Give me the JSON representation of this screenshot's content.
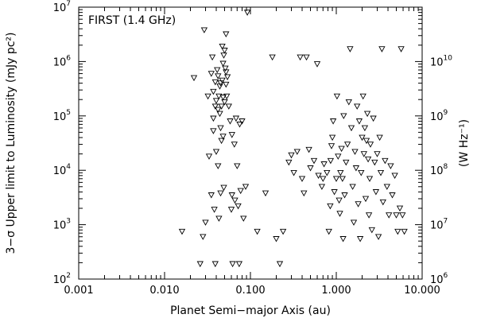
{
  "chart_data": {
    "type": "scatter",
    "annotation": "FIRST (1.4 GHz)",
    "xlabel": "Planet Semi−major Axis (au)",
    "ylabel": "3−σ Upper limit to Luminosity (mJy pc²)",
    "ylabel_right": "(W Hz⁻¹)",
    "xscale": "log",
    "yscale": "log",
    "xlim": [
      0.001,
      10
    ],
    "ylim": [
      100,
      10000000
    ],
    "ylim_right": [
      1000000,
      100000000000
    ],
    "grid": false,
    "legend": "none",
    "marker": "open-down-triangle",
    "x_ticks": [
      {
        "value": 0.001,
        "label": "0.001"
      },
      {
        "value": 0.01,
        "label": "0.010"
      },
      {
        "value": 0.1,
        "label": "0.100"
      },
      {
        "value": 1,
        "label": "1.000"
      },
      {
        "value": 10,
        "label": "10.000"
      }
    ],
    "y_ticks": [
      {
        "value": 100,
        "base": "10",
        "exp": "2"
      },
      {
        "value": 1000,
        "base": "10",
        "exp": "3"
      },
      {
        "value": 10000,
        "base": "10",
        "exp": "4"
      },
      {
        "value": 100000,
        "base": "10",
        "exp": "5"
      },
      {
        "value": 1000000,
        "base": "10",
        "exp": "6"
      },
      {
        "value": 10000000,
        "base": "10",
        "exp": "7"
      }
    ],
    "y_ticks_right": [
      {
        "value": 1000000,
        "base": "10",
        "exp": "6"
      },
      {
        "value": 10000000,
        "base": "10",
        "exp": "7"
      },
      {
        "value": 100000000,
        "base": "10",
        "exp": "8"
      },
      {
        "value": 1000000000,
        "base": "10",
        "exp": "9"
      },
      {
        "value": 10000000000,
        "base": "10",
        "exp": "10"
      }
    ],
    "series": [
      {
        "points": [
          [
            0.016,
            750
          ],
          [
            0.022,
            500000
          ],
          [
            0.026,
            190
          ],
          [
            0.028,
            600
          ],
          [
            0.029,
            3800000
          ],
          [
            0.03,
            1100
          ],
          [
            0.032,
            230000
          ],
          [
            0.033,
            18000
          ],
          [
            0.035,
            3500
          ],
          [
            0.035,
            600000
          ],
          [
            0.036,
            1200000
          ],
          [
            0.037,
            280000
          ],
          [
            0.037,
            90000
          ],
          [
            0.037,
            53000
          ],
          [
            0.038,
            1900
          ],
          [
            0.039,
            190
          ],
          [
            0.039,
            150000
          ],
          [
            0.039,
            420000
          ],
          [
            0.04,
            22000
          ],
          [
            0.04,
            190000
          ],
          [
            0.041,
            700000
          ],
          [
            0.042,
            540000
          ],
          [
            0.042,
            130000
          ],
          [
            0.042,
            12000
          ],
          [
            0.043,
            1300
          ],
          [
            0.043,
            230000
          ],
          [
            0.044,
            110000
          ],
          [
            0.044,
            350000
          ],
          [
            0.045,
            3800
          ],
          [
            0.045,
            60000
          ],
          [
            0.045,
            400000
          ],
          [
            0.046,
            150000
          ],
          [
            0.046,
            35000
          ],
          [
            0.047,
            450000
          ],
          [
            0.047,
            1900000
          ],
          [
            0.048,
            920000
          ],
          [
            0.048,
            220000
          ],
          [
            0.048,
            42000
          ],
          [
            0.049,
            4800
          ],
          [
            0.049,
            1300000
          ],
          [
            0.05,
            180000
          ],
          [
            0.05,
            1600000
          ],
          [
            0.051,
            750000
          ],
          [
            0.052,
            640000
          ],
          [
            0.052,
            380000
          ],
          [
            0.052,
            3200000
          ],
          [
            0.053,
            230000
          ],
          [
            0.054,
            520000
          ],
          [
            0.056,
            150000
          ],
          [
            0.058,
            80000
          ],
          [
            0.06,
            1900
          ],
          [
            0.061,
            3500
          ],
          [
            0.061,
            45000
          ],
          [
            0.062,
            190
          ],
          [
            0.065,
            30000
          ],
          [
            0.066,
            2800
          ],
          [
            0.068,
            90000
          ],
          [
            0.07,
            12000
          ],
          [
            0.072,
            2200
          ],
          [
            0.074,
            190
          ],
          [
            0.075,
            70000
          ],
          [
            0.077,
            4200
          ],
          [
            0.08,
            80000
          ],
          [
            0.083,
            1300
          ],
          [
            0.088,
            5000
          ],
          [
            0.092,
            8000000
          ],
          [
            0.12,
            750
          ],
          [
            0.15,
            3800
          ],
          [
            0.18,
            1200000
          ],
          [
            0.2,
            550
          ],
          [
            0.22,
            190
          ],
          [
            0.24,
            750
          ],
          [
            0.28,
            14000
          ],
          [
            0.3,
            19000
          ],
          [
            0.32,
            9000
          ],
          [
            0.35,
            22000
          ],
          [
            0.38,
            1200000
          ],
          [
            0.4,
            7000
          ],
          [
            0.42,
            3800
          ],
          [
            0.45,
            1200000
          ],
          [
            0.48,
            24000
          ],
          [
            0.5,
            11000
          ],
          [
            0.55,
            15000
          ],
          [
            0.6,
            900000
          ],
          [
            0.62,
            8000
          ],
          [
            0.68,
            5000
          ],
          [
            0.7,
            7000
          ],
          [
            0.72,
            13000
          ],
          [
            0.78,
            9000
          ],
          [
            0.82,
            750
          ],
          [
            0.85,
            2200
          ],
          [
            0.86,
            15000
          ],
          [
            0.88,
            28000
          ],
          [
            0.9,
            40000
          ],
          [
            0.92,
            80000
          ],
          [
            0.95,
            4000
          ],
          [
            1.0,
            7000
          ],
          [
            1.02,
            230000
          ],
          [
            1.05,
            18000
          ],
          [
            1.08,
            2800
          ],
          [
            1.1,
            1600
          ],
          [
            1.12,
            9000
          ],
          [
            1.15,
            25000
          ],
          [
            1.18,
            7000
          ],
          [
            1.2,
            550
          ],
          [
            1.22,
            100000
          ],
          [
            1.25,
            3500
          ],
          [
            1.3,
            14000
          ],
          [
            1.35,
            30000
          ],
          [
            1.4,
            180000
          ],
          [
            1.45,
            1700000
          ],
          [
            1.5,
            60000
          ],
          [
            1.55,
            5000
          ],
          [
            1.6,
            1100
          ],
          [
            1.65,
            22000
          ],
          [
            1.7,
            11000
          ],
          [
            1.75,
            150000
          ],
          [
            1.8,
            2400
          ],
          [
            1.85,
            80000
          ],
          [
            1.9,
            550
          ],
          [
            1.95,
            9000
          ],
          [
            2.0,
            40000
          ],
          [
            2.05,
            230000
          ],
          [
            2.1,
            20000
          ],
          [
            2.15,
            60000
          ],
          [
            2.2,
            3000
          ],
          [
            2.25,
            35000
          ],
          [
            2.3,
            110000
          ],
          [
            2.35,
            16000
          ],
          [
            2.4,
            1500
          ],
          [
            2.45,
            7000
          ],
          [
            2.5,
            30000
          ],
          [
            2.6,
            800
          ],
          [
            2.7,
            90000
          ],
          [
            2.8,
            14000
          ],
          [
            2.9,
            4000
          ],
          [
            3.0,
            20000
          ],
          [
            3.1,
            600
          ],
          [
            3.2,
            40000
          ],
          [
            3.3,
            9000
          ],
          [
            3.4,
            1700000
          ],
          [
            3.5,
            2600
          ],
          [
            3.7,
            15000
          ],
          [
            3.9,
            5000
          ],
          [
            4.1,
            1500
          ],
          [
            4.3,
            12000
          ],
          [
            4.5,
            3500
          ],
          [
            4.8,
            8000
          ],
          [
            5.0,
            1500
          ],
          [
            5.2,
            750
          ],
          [
            5.5,
            2000
          ],
          [
            5.7,
            1700000
          ],
          [
            5.9,
            1500
          ],
          [
            6.2,
            750
          ]
        ]
      }
    ]
  }
}
